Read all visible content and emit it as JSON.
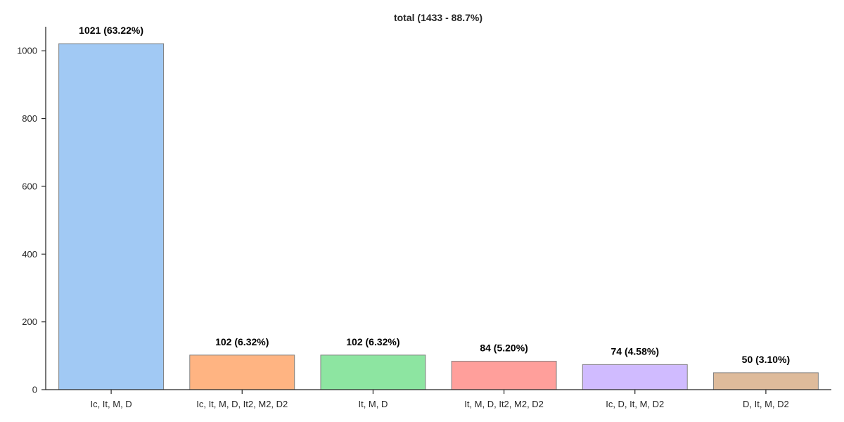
{
  "chart_data": {
    "type": "bar",
    "title": "total (1433 - 88.7%)",
    "xlabel": "",
    "ylabel": "",
    "categories": [
      "Ic, It, M, D",
      "Ic, It, M, D, It2, M2, D2",
      "It, M, D",
      "It, M, D, It2, M2, D2",
      "Ic, D, It, M, D2",
      "D, It, M, D2"
    ],
    "values": [
      1021,
      102,
      102,
      84,
      74,
      50
    ],
    "data_labels": [
      "1021 (63.22%)",
      "102 (6.32%)",
      "102 (6.32%)",
      "84 (5.20%)",
      "74 (4.58%)",
      "50 (3.10%)"
    ],
    "colors": [
      "#a1c9f4",
      "#ffb482",
      "#8de5a1",
      "#ff9f9b",
      "#d0bbff",
      "#debb9b"
    ],
    "bar_edge_color": "#808080",
    "ylim": [
      0,
      1071
    ],
    "yticks": [
      0,
      200,
      400,
      600,
      800,
      1000
    ],
    "grid": false,
    "legend": "none"
  }
}
